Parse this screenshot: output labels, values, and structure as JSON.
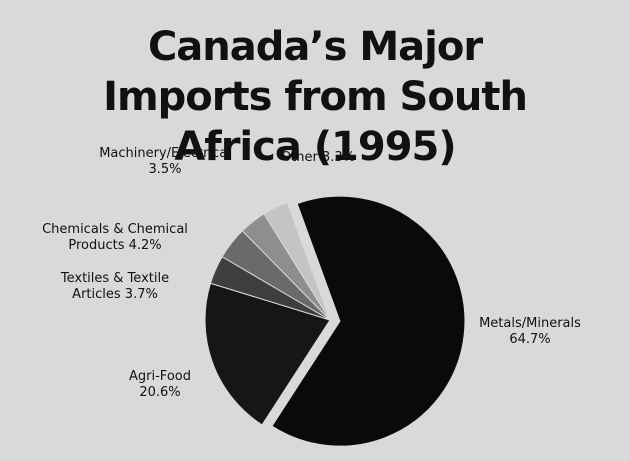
{
  "chart_data": {
    "type": "pie",
    "title": "Canada’s Major Imports from South Africa (1995)",
    "categories": [
      "Metals/Minerals",
      "Agri-Food",
      "Textiles & Textile Articles",
      "Chemicals & Chemical Products",
      "Machinery/Electrical",
      "Other"
    ],
    "values": [
      64.7,
      20.6,
      3.7,
      4.2,
      3.5,
      3.3
    ],
    "value_labels": [
      "64.7%",
      "20.6%",
      "3.7%",
      "4.2%",
      "3.5%",
      "3.3%"
    ],
    "colors": [
      "#0a0a0a",
      "#161616",
      "#3e3e3e",
      "#6a6a6a",
      "#8e8e8e",
      "#c4c4c4"
    ]
  }
}
